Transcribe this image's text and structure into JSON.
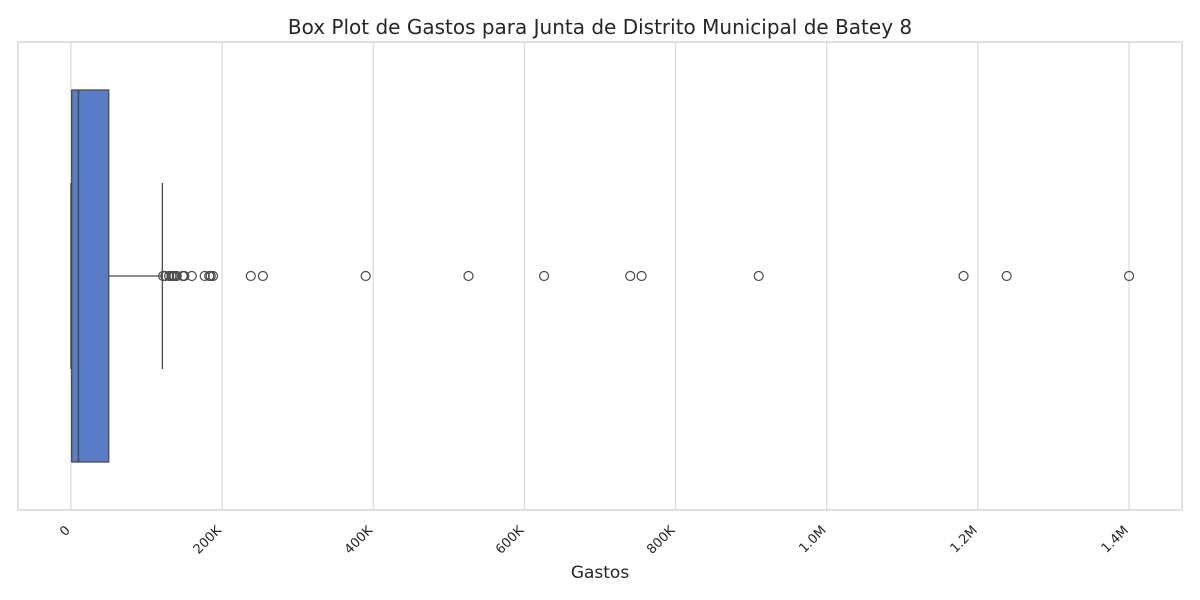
{
  "chart_data": {
    "type": "box",
    "title": "Box Plot de Gastos para Junta de Distrito Municipal de Batey 8",
    "xlabel": "Gastos",
    "ylabel": "",
    "orientation": "horizontal",
    "xlim": [
      -70000,
      1470000
    ],
    "grid": "vertical",
    "x_ticks": [
      {
        "value": 0,
        "label": "0"
      },
      {
        "value": 200000,
        "label": "200K"
      },
      {
        "value": 400000,
        "label": "400K"
      },
      {
        "value": 600000,
        "label": "600K"
      },
      {
        "value": 800000,
        "label": "800K"
      },
      {
        "value": 1000000,
        "label": "1.0M"
      },
      {
        "value": 1200000,
        "label": "1.2M"
      },
      {
        "value": 1400000,
        "label": "1.4M"
      }
    ],
    "box": {
      "whisker_low": 0,
      "q1": 1000,
      "median": 10000,
      "q3": 50000,
      "whisker_high": 121000
    },
    "outliers": [
      122000,
      125000,
      130000,
      133000,
      135000,
      137000,
      140000,
      148000,
      150000,
      160000,
      177000,
      183000,
      185000,
      188000,
      238000,
      254000,
      390000,
      526000,
      626000,
      740000,
      755000,
      910000,
      1181000,
      1238000,
      1400000
    ],
    "colors": {
      "box_fill": "#5A7BC6",
      "line": "#4a4a4a",
      "grid": "#d9d9d9",
      "frame": "#cccccc"
    }
  }
}
